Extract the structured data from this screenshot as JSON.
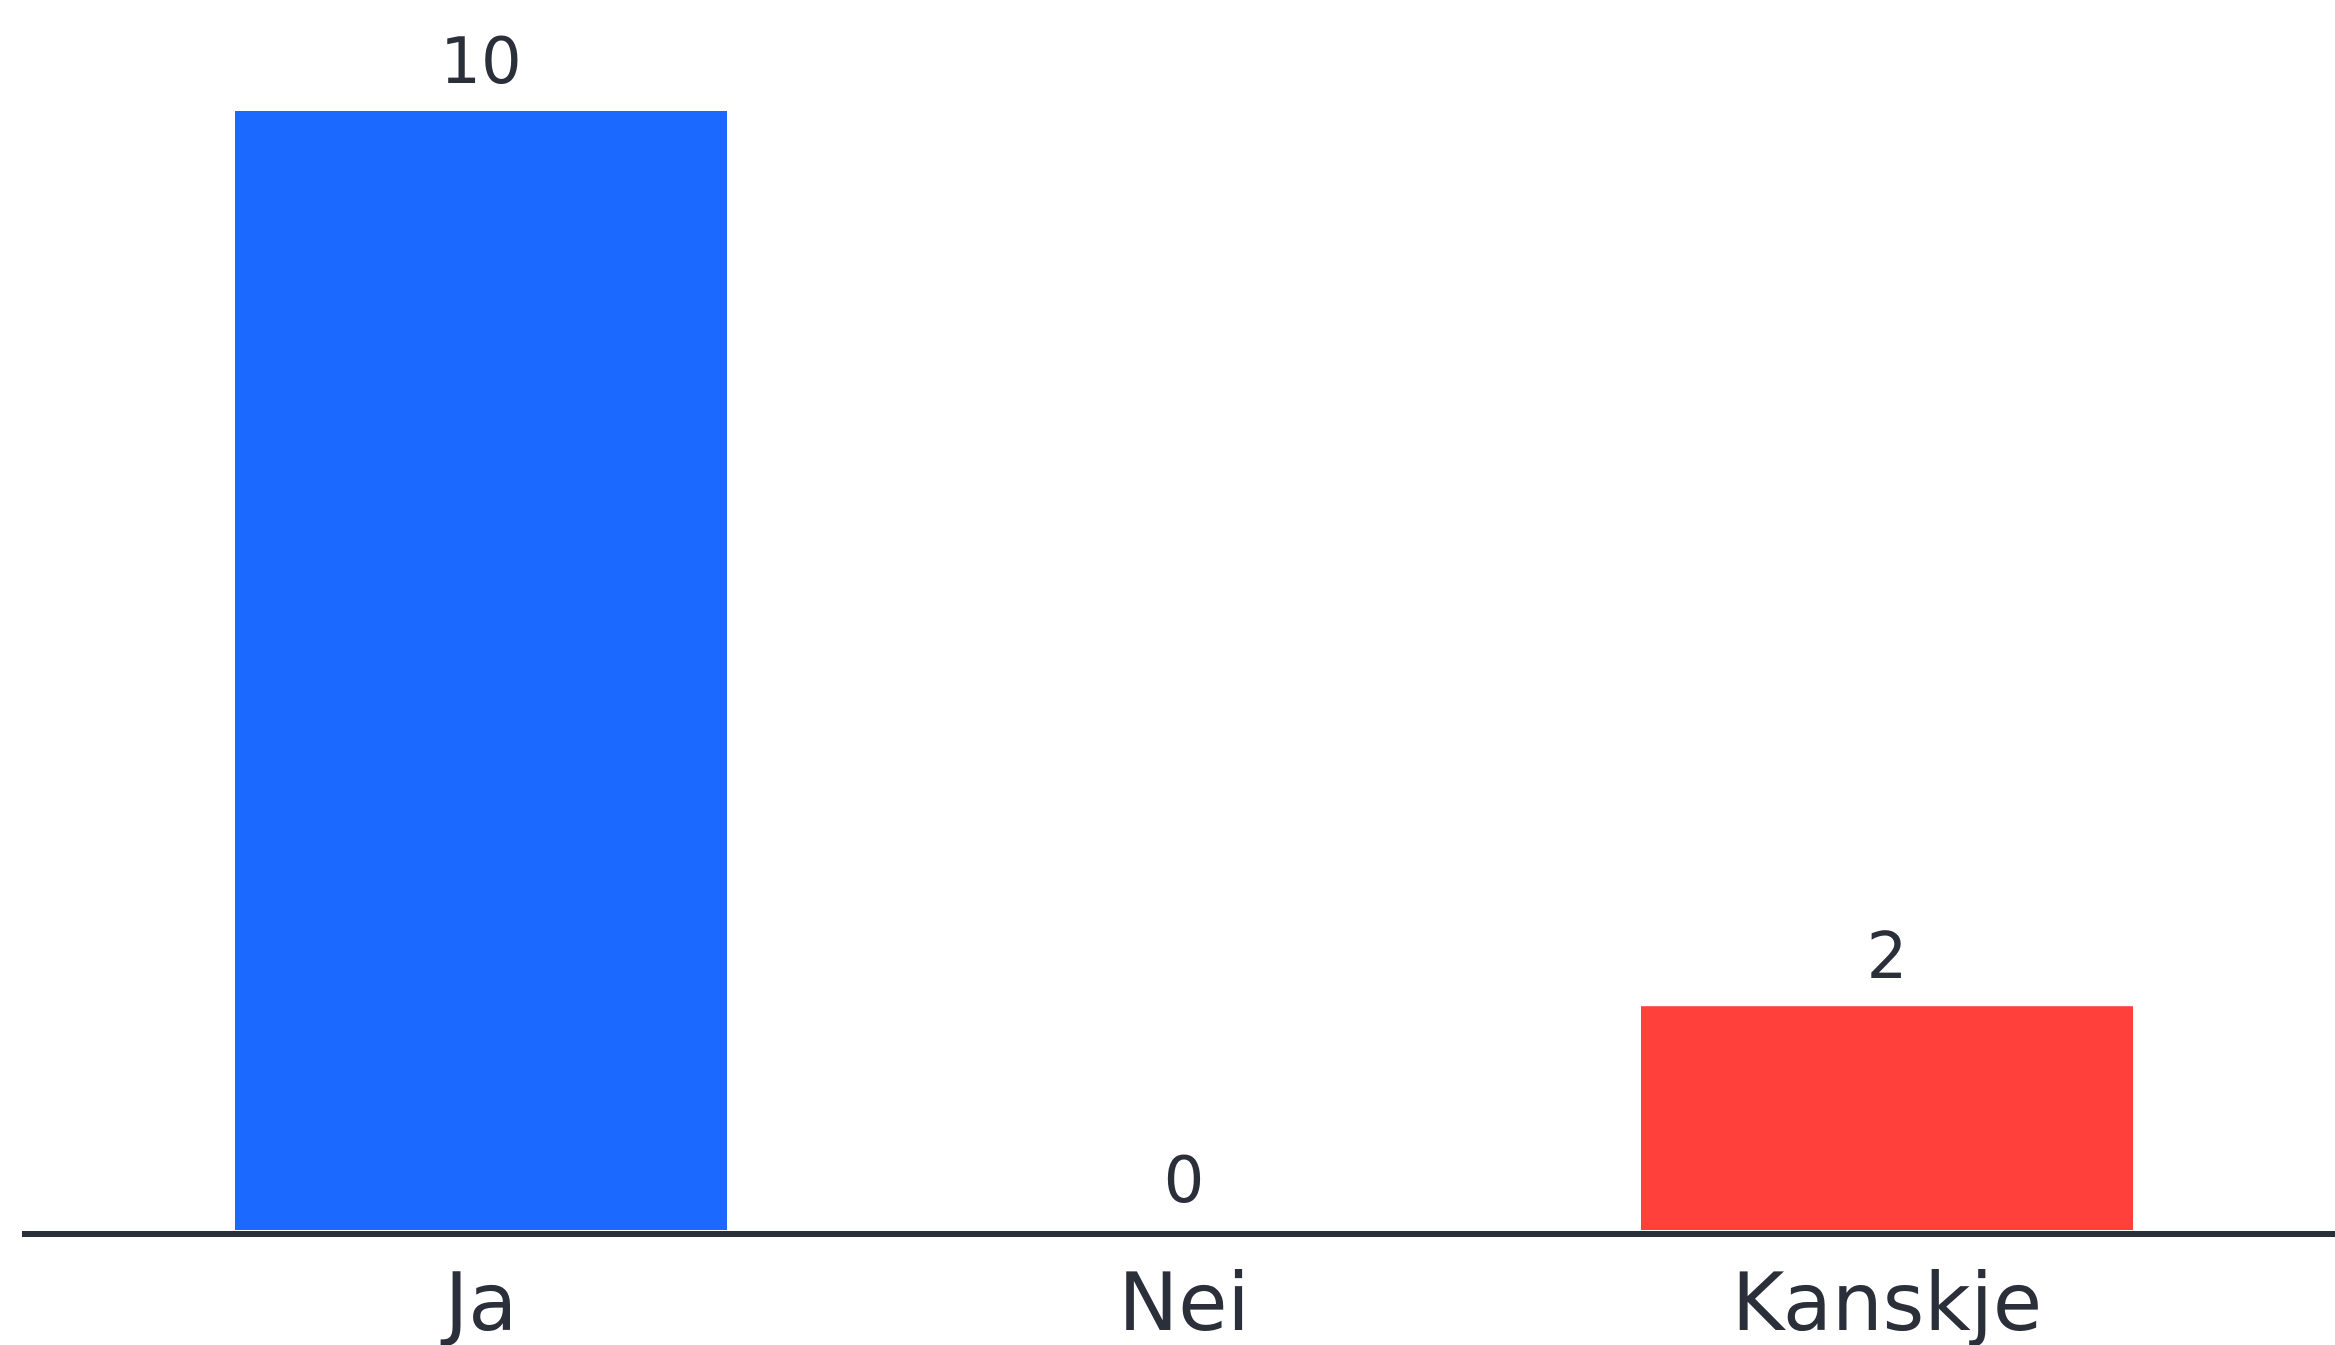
{
  "chart_data": {
    "type": "bar",
    "categories": [
      "Ja",
      "Nei",
      "Kanskje"
    ],
    "values": [
      10,
      0,
      2
    ],
    "value_labels": [
      "10",
      "0",
      "2"
    ],
    "bar_colors": [
      "#1c69ff",
      "#1c69ff",
      "#ff403b"
    ],
    "axis_color": "#2b2f3a",
    "text_color": "#2b2f3a",
    "ylim": [
      0,
      10
    ],
    "grid": false,
    "legend": "none"
  }
}
